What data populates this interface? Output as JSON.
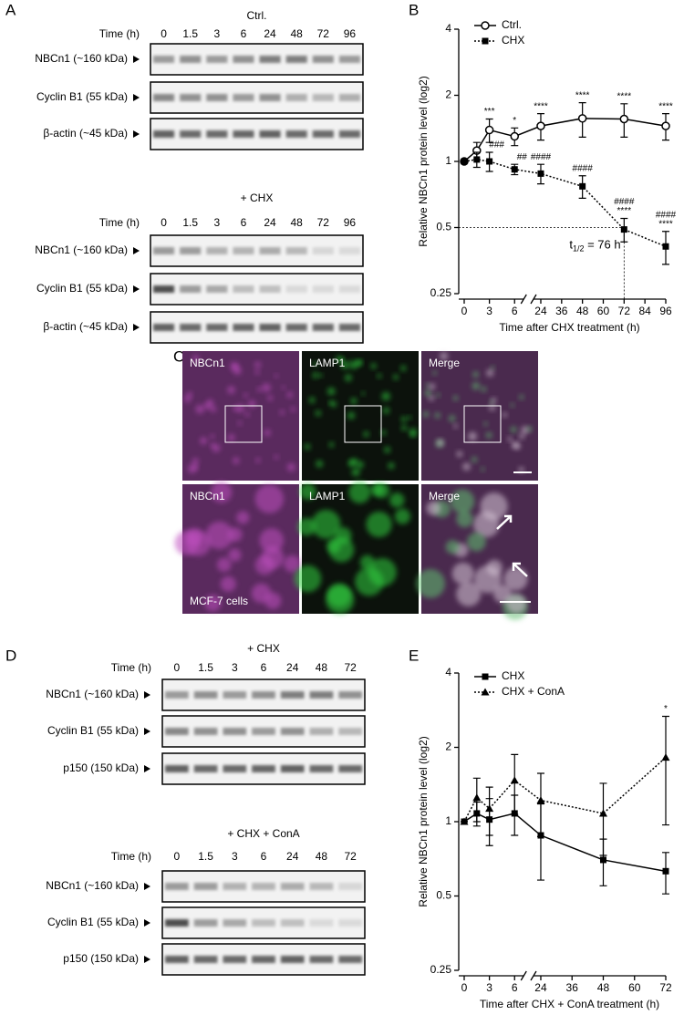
{
  "panel_labels": [
    "A",
    "B",
    "C",
    "D",
    "E"
  ],
  "panel_A": {
    "blots": [
      {
        "title": "Ctrl.",
        "time_label": "Time (h)",
        "times": [
          0,
          1.5,
          3,
          6,
          24,
          48,
          72,
          96
        ],
        "rows": [
          "NBCn1 (~160 kDa)",
          "Cyclin B1 (55 kDa)",
          "β-actin (~45 kDa)"
        ]
      },
      {
        "title": "+ CHX",
        "time_label": "Time (h)",
        "times": [
          0,
          1.5,
          3,
          6,
          24,
          48,
          72,
          96
        ],
        "rows": [
          "NBCn1 (~160 kDa)",
          "Cyclin B1 (55 kDa)",
          "β-actin (~45 kDa)"
        ]
      }
    ]
  },
  "panel_C": {
    "rows": [
      [
        "NBCn1",
        "LAMP1",
        "Merge"
      ],
      [
        "NBCn1",
        "LAMP1",
        "Merge"
      ]
    ],
    "cell_line": "MCF-7 cells"
  },
  "panel_D": {
    "blots": [
      {
        "title": "+ CHX",
        "time_label": "Time (h)",
        "times": [
          0,
          1.5,
          3,
          6,
          24,
          48,
          72
        ],
        "rows": [
          "NBCn1 (~160 kDa)",
          "Cyclin B1 (55 kDa)",
          "p150 (150 kDa)"
        ]
      },
      {
        "title": "+ CHX + ConA",
        "time_label": "Time (h)",
        "times": [
          0,
          1.5,
          3,
          6,
          24,
          48,
          72
        ],
        "rows": [
          "NBCn1 (~160 kDa)",
          "Cyclin B1 (55 kDa)",
          "p150 (150 kDa)"
        ]
      }
    ]
  },
  "chart_data": [
    {
      "type": "line",
      "ylabel": "Relative NBCn1 protein level (log2)",
      "xlabel": "Time after CHX treatment (h)",
      "yscale": "log2",
      "ylim": [
        0.25,
        4
      ],
      "yticks": [
        0.25,
        0.5,
        1,
        2,
        4
      ],
      "xlim": [
        0,
        96
      ],
      "xticks": [
        0,
        3,
        6,
        24,
        36,
        48,
        60,
        72,
        84,
        96
      ],
      "x_break": [
        6,
        24
      ],
      "legend": "upper left",
      "series": [
        {
          "name": "Ctrl.",
          "color": "#000000",
          "marker": "open-circle",
          "dash": "solid",
          "x": [
            0,
            1.5,
            3,
            6,
            24,
            48,
            72,
            96
          ],
          "values": [
            1,
            1.12,
            1.39,
            1.3,
            1.45,
            1.57,
            1.56,
            1.45
          ],
          "errors": [
            0,
            0.1,
            0.17,
            0.12,
            0.2,
            0.28,
            0.27,
            0.2
          ],
          "point_labels": [
            null,
            null,
            "***",
            "*",
            "****",
            "****",
            "****",
            "****"
          ]
        },
        {
          "name": "CHX",
          "color": "#000000",
          "marker": "square",
          "dash": "dotted",
          "x": [
            0,
            1.5,
            3,
            6,
            24,
            48,
            72,
            96
          ],
          "values": [
            1,
            1.02,
            1,
            0.92,
            0.88,
            0.77,
            0.49,
            0.41
          ],
          "errors": [
            0,
            0.08,
            0.1,
            0.05,
            0.09,
            0.09,
            0.06,
            0.07
          ],
          "point_labels": [
            null,
            null,
            "###",
            "##",
            "####",
            "####",
            [
              "****",
              "####"
            ],
            [
              "****",
              "####"
            ]
          ]
        }
      ],
      "half_life": {
        "label": "t",
        "label_sub": "1/2",
        "label_suffix": " = 76 h",
        "y": 0.5,
        "x": 72
      }
    },
    {
      "type": "line",
      "ylabel": "Relative NBCn1 protein level (log2)",
      "xlabel": "Time after CHX + ConA treatment (h)",
      "yscale": "log2",
      "ylim": [
        0.25,
        4
      ],
      "yticks": [
        0.25,
        0.5,
        1,
        2,
        4
      ],
      "xlim": [
        0,
        72
      ],
      "xticks": [
        0,
        3,
        6,
        24,
        36,
        48,
        60,
        72
      ],
      "x_break": [
        6,
        24
      ],
      "legend": "upper left",
      "series": [
        {
          "name": "CHX",
          "color": "#000000",
          "marker": "square",
          "dash": "solid",
          "x": [
            0,
            1.5,
            3,
            6,
            24,
            48,
            72
          ],
          "values": [
            1,
            1.08,
            1.02,
            1.08,
            0.88,
            0.7,
            0.63
          ],
          "errors": [
            0,
            0.12,
            0.22,
            0.2,
            0.3,
            0.15,
            0.12
          ],
          "point_labels": [
            null,
            null,
            null,
            null,
            null,
            null,
            null
          ]
        },
        {
          "name": "CHX + ConA",
          "color": "#000000",
          "marker": "triangle",
          "dash": "dotted",
          "x": [
            0,
            1.5,
            3,
            6,
            24,
            48,
            72
          ],
          "values": [
            1,
            1.25,
            1.13,
            1.47,
            1.22,
            1.08,
            1.82
          ],
          "errors": [
            0,
            0.25,
            0.25,
            0.4,
            0.35,
            0.35,
            0.85
          ],
          "point_labels": [
            null,
            null,
            null,
            null,
            null,
            null,
            "*"
          ]
        }
      ]
    }
  ]
}
